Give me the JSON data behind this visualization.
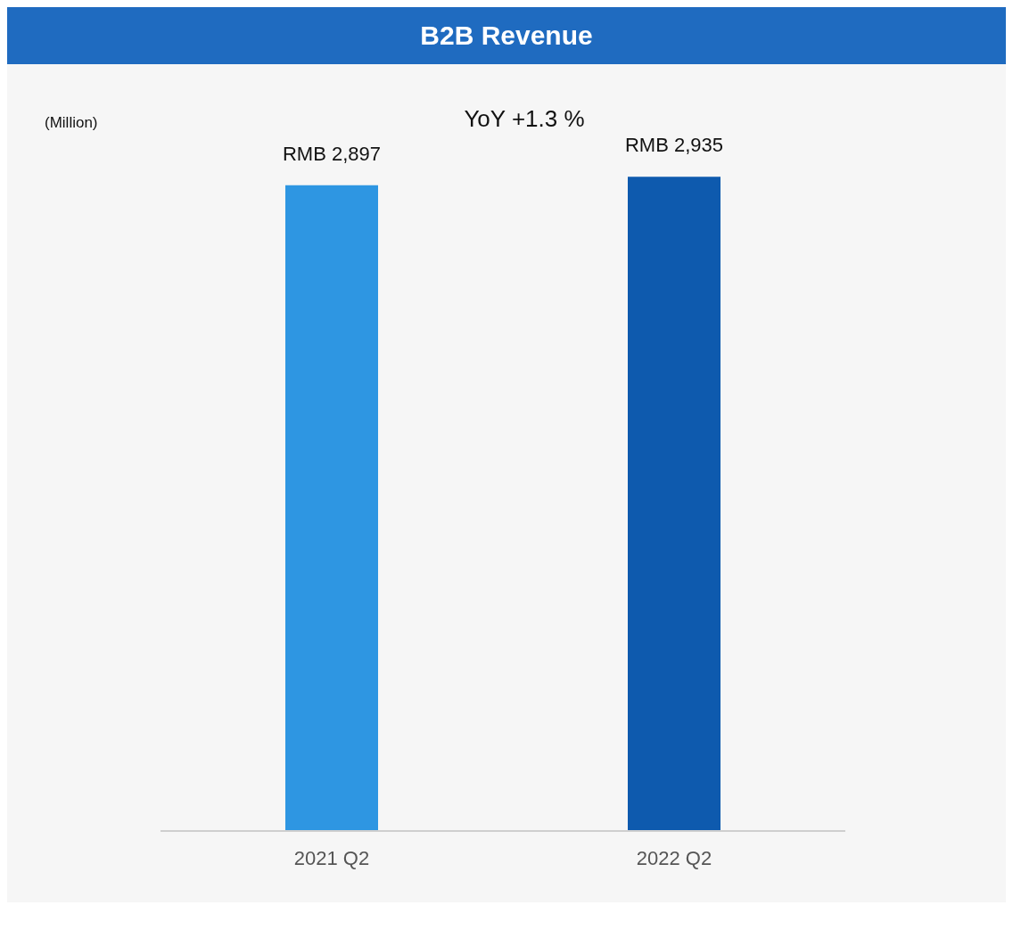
{
  "chart_data": {
    "type": "bar",
    "title": "B2B Revenue",
    "subtitle": "YoY +1.3 %",
    "annotations": [
      "(Million)"
    ],
    "categories": [
      "2021 Q2",
      "2022 Q2"
    ],
    "values": [
      2897,
      2935
    ],
    "colors": [
      "#2e96e2",
      "#0e5aae"
    ],
    "value_labels": [
      "RMB 2,897",
      "RMB 2,935"
    ],
    "tick_labels": "x"
  }
}
